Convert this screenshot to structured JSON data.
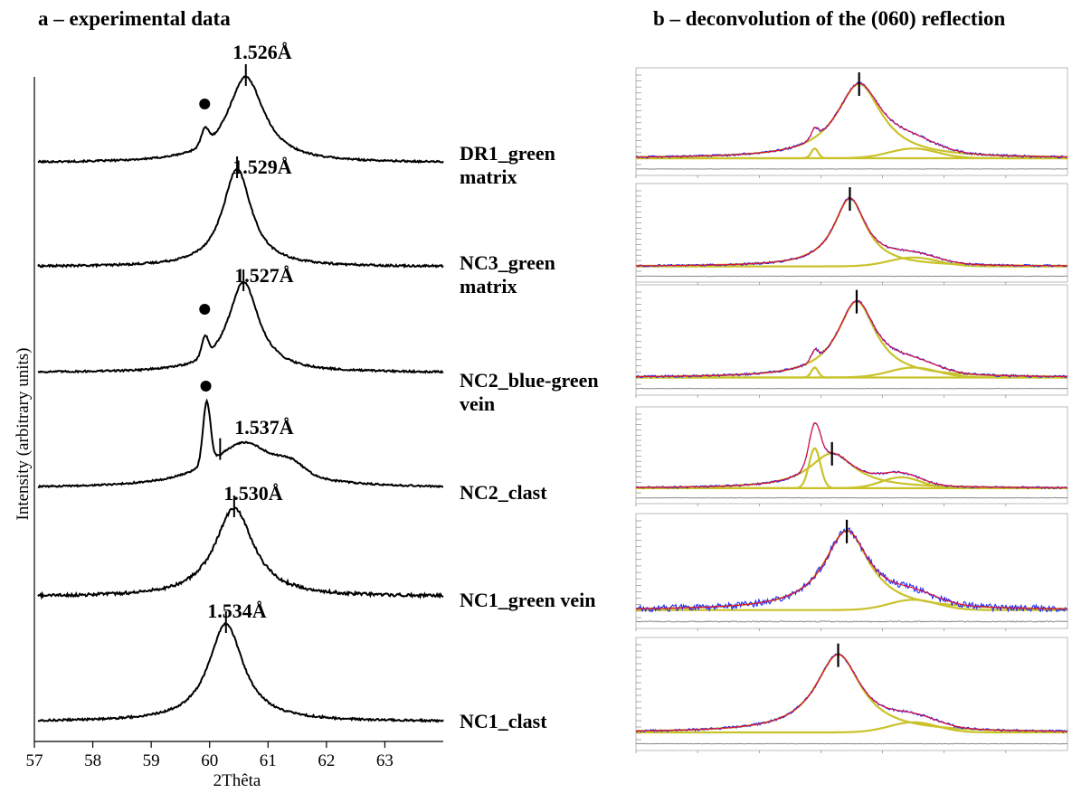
{
  "panels": {
    "a_title": "a – experimental data",
    "b_title": "b – deconvolution of the (060) reflection"
  },
  "axes": {
    "ylabel": "Intensity (arbitrary units)",
    "xlabel": "2Thêta"
  },
  "colors": {
    "experimental": "#000000",
    "raw_data": "#1a2bff",
    "fit_sum": "#e0103a",
    "components": "#c9c22a",
    "residual": "#888888"
  },
  "chart_data": [
    {
      "type": "line",
      "title": "a – experimental data",
      "xlabel": "2Thêta",
      "ylabel": "Intensity (arbitrary units)",
      "xlim": [
        57,
        64
      ],
      "xticks": [
        57,
        58,
        59,
        60,
        61,
        62,
        63
      ],
      "grid": false,
      "series": [
        {
          "name": "DR1_green matrix",
          "peak_2theta": 60.62,
          "d_spacing": "1.526Å",
          "shoulder_marker": true,
          "shoulder_2theta": 59.9
        },
        {
          "name": "NC3_green matrix",
          "peak_2theta": 60.47,
          "d_spacing": "1.529Å",
          "shoulder_marker": false
        },
        {
          "name": "NC2_blue-green vein",
          "peak_2theta": 60.58,
          "d_spacing": "1.527Å",
          "shoulder_marker": true,
          "shoulder_2theta": 59.9
        },
        {
          "name": "NC2_clast",
          "peak_2theta": 60.18,
          "d_spacing": "1.537Å",
          "shoulder_marker": true,
          "shoulder_2theta": 59.92
        },
        {
          "name": "NC1_green vein",
          "peak_2theta": 60.42,
          "d_spacing": "1.530Å",
          "shoulder_marker": false
        },
        {
          "name": "NC1_clast",
          "peak_2theta": 60.28,
          "d_spacing": "1.534Å",
          "shoulder_marker": false
        }
      ]
    },
    {
      "type": "line",
      "title": "b – deconvolution of the (060) reflection",
      "xlim": [
        57,
        64
      ],
      "series_types": [
        "raw data",
        "fit sum",
        "fit components",
        "residual"
      ],
      "subplots": [
        {
          "sample": "DR1_green matrix",
          "marker_2theta": 60.62
        },
        {
          "sample": "NC3_green matrix",
          "marker_2theta": 60.47
        },
        {
          "sample": "NC2_blue-green vein",
          "marker_2theta": 60.58
        },
        {
          "sample": "NC2_clast",
          "marker_2theta": 60.18
        },
        {
          "sample": "NC1_green vein",
          "marker_2theta": 60.42
        },
        {
          "sample": "NC1_clast",
          "marker_2theta": 60.28
        }
      ]
    }
  ],
  "labels": [
    [
      "DR1_green",
      "matrix"
    ],
    [
      "NC3_green",
      "matrix"
    ],
    [
      "NC2_blue-green",
      "vein"
    ],
    [
      "NC2_clast"
    ],
    [
      "NC1_green vein"
    ],
    [
      "NC1_clast"
    ]
  ]
}
